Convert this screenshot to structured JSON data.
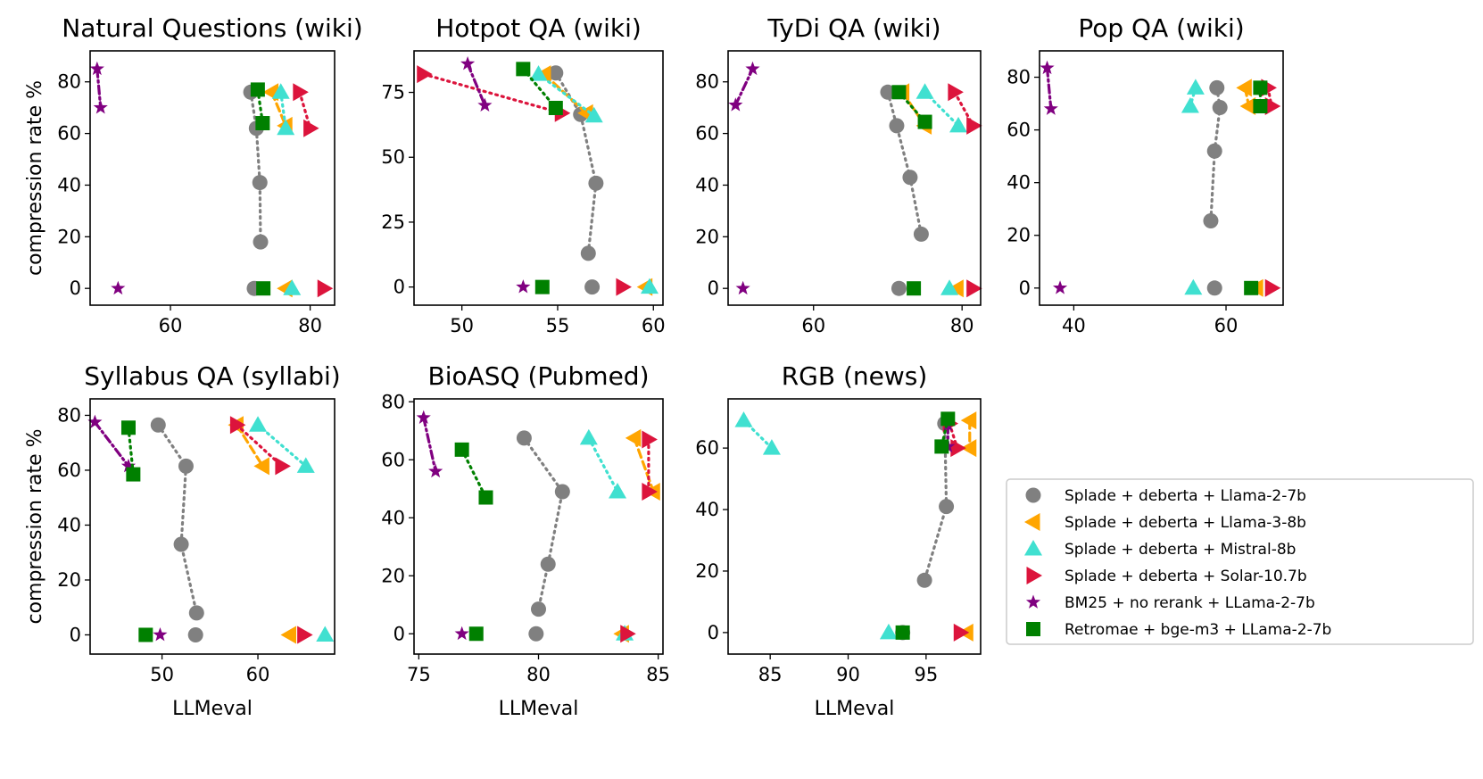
{
  "legend": [
    {
      "label": "Splade + deberta + Llama-2-7b",
      "marker": "circle",
      "color": "#808080",
      "line": "dotted"
    },
    {
      "label": "Splade + deberta + Llama-3-8b",
      "marker": "triangle-left",
      "color": "#FFA500",
      "line": "dashed"
    },
    {
      "label": "Splade + deberta + Mistral-8b",
      "marker": "triangle-up",
      "color": "#40E0D0",
      "line": "dotted"
    },
    {
      "label": "Splade + deberta + Solar-10.7b",
      "marker": "triangle-right",
      "color": "#DC143C",
      "line": "dotted"
    },
    {
      "label": "BM25 + no rerank + LLama-2-7b",
      "marker": "star",
      "color": "#800080",
      "line": "dashdot"
    },
    {
      "label": "Retromae + bge-m3 + LLama-2-7b",
      "marker": "square",
      "color": "#008000",
      "line": "dotted"
    }
  ],
  "chart_data": [
    {
      "type": "scatter",
      "title": "Natural Questions (wiki)",
      "xlabel": "",
      "ylabel": "compression rate %",
      "xlim": [
        48.5,
        83.5
      ],
      "ylim": [
        -6.5,
        92
      ],
      "xticks": [
        60,
        80
      ],
      "yticks": [
        0,
        20,
        40,
        60,
        80
      ],
      "series": [
        {
          "name": "Splade + deberta + Llama-2-7b",
          "points": [
            [
              71.5,
              76
            ],
            [
              72.3,
              62
            ],
            [
              72.8,
              41
            ],
            [
              72.9,
              18
            ]
          ],
          "zero": 72.0
        },
        {
          "name": "Splade + deberta + Llama-3-8b",
          "points": [
            [
              74.5,
              76
            ],
            [
              76.5,
              63
            ]
          ],
          "zero": 76.5
        },
        {
          "name": "Splade + deberta + Mistral-8b",
          "points": [
            [
              75.8,
              76
            ],
            [
              76.5,
              62
            ]
          ],
          "zero": 77.4
        },
        {
          "name": "Splade + deberta + Solar-10.7b",
          "points": [
            [
              78.5,
              76
            ],
            [
              80.0,
              62
            ]
          ],
          "zero": 82.0
        },
        {
          "name": "BM25 + no rerank + LLama-2-7b",
          "points": [
            [
              49.5,
              85
            ],
            [
              50.0,
              70
            ]
          ],
          "zero": 52.5
        },
        {
          "name": "Retromae + bge-m3 + LLama-2-7b",
          "points": [
            [
              72.5,
              77
            ],
            [
              73.2,
              64
            ]
          ],
          "zero": 73.3
        }
      ]
    },
    {
      "type": "scatter",
      "title": "Hotpot QA (wiki)",
      "xlabel": "",
      "ylabel": "",
      "xlim": [
        47.5,
        60.5
      ],
      "ylim": [
        -7,
        91
      ],
      "xticks": [
        50,
        55,
        60
      ],
      "yticks": [
        0,
        25,
        50,
        75
      ],
      "series": [
        {
          "name": "Splade + deberta + Llama-2-7b",
          "points": [
            [
              54.9,
              82.5
            ],
            [
              56.2,
              66.5
            ],
            [
              57.0,
              40
            ],
            [
              56.6,
              13
            ]
          ],
          "zero": 56.8
        },
        {
          "name": "Splade + deberta + Llama-3-8b",
          "points": [
            [
              54.3,
              82
            ],
            [
              56.5,
              67
            ]
          ],
          "zero": 59.6
        },
        {
          "name": "Splade + deberta + Mistral-8b",
          "points": [
            [
              54.0,
              82
            ],
            [
              56.9,
              66
            ]
          ],
          "zero": 59.8
        },
        {
          "name": "Splade + deberta + Solar-10.7b",
          "points": [
            [
              48.0,
              82
            ],
            [
              55.2,
              67
            ]
          ],
          "zero": 58.4
        },
        {
          "name": "BM25 + no rerank + LLama-2-7b",
          "points": [
            [
              50.3,
              86
            ],
            [
              51.2,
              70
            ]
          ],
          "zero": 53.2
        },
        {
          "name": "Retromae + bge-m3 + LLama-2-7b",
          "points": [
            [
              53.2,
              84
            ],
            [
              54.9,
              69
            ]
          ],
          "zero": 54.2
        }
      ]
    },
    {
      "type": "scatter",
      "title": "TyDi QA (wiki)",
      "xlabel": "",
      "ylabel": "",
      "xlim": [
        48.5,
        82.5
      ],
      "ylim": [
        -6.5,
        92
      ],
      "xticks": [
        60,
        80
      ],
      "yticks": [
        0,
        20,
        40,
        60,
        80
      ],
      "series": [
        {
          "name": "Splade + deberta + Llama-2-7b",
          "points": [
            [
              70.0,
              76
            ],
            [
              71.2,
              63
            ],
            [
              73.0,
              43
            ],
            [
              74.5,
              21
            ]
          ],
          "zero": 71.5
        },
        {
          "name": "Splade + deberta + Llama-3-8b",
          "points": [
            [
              72.0,
              76
            ],
            [
              75.0,
              63
            ]
          ],
          "zero": 79.3
        },
        {
          "name": "Splade + deberta + Mistral-8b",
          "points": [
            [
              75.0,
              76
            ],
            [
              79.5,
              63
            ]
          ],
          "zero": 78.3
        },
        {
          "name": "Splade + deberta + Solar-10.7b",
          "points": [
            [
              79.0,
              76
            ],
            [
              81.5,
              63
            ]
          ],
          "zero": 81.5
        },
        {
          "name": "BM25 + no rerank + LLama-2-7b",
          "points": [
            [
              49.5,
              71
            ],
            [
              51.8,
              85
            ]
          ],
          "zero": 50.5
        },
        {
          "name": "Retromae + bge-m3 + LLama-2-7b",
          "points": [
            [
              71.5,
              76
            ],
            [
              75.0,
              64.5
            ]
          ],
          "zero": 73.5
        }
      ]
    },
    {
      "type": "scatter",
      "title": "Pop QA (wiki)",
      "xlabel": "",
      "ylabel": "",
      "xlim": [
        35.5,
        67.5
      ],
      "ylim": [
        -6.5,
        90
      ],
      "xticks": [
        40,
        60
      ],
      "yticks": [
        0,
        20,
        40,
        60,
        80
      ],
      "series": [
        {
          "name": "Splade + deberta + Llama-2-7b",
          "points": [
            [
              58.8,
              76
            ],
            [
              59.2,
              68.5
            ],
            [
              58.5,
              52
            ],
            [
              58.0,
              25.5
            ]
          ],
          "zero": 58.5
        },
        {
          "name": "Splade + deberta + Llama-3-8b",
          "points": [
            [
              62.5,
              76
            ],
            [
              63.0,
              69
            ]
          ],
          "zero": 64.0
        },
        {
          "name": "Splade + deberta + Mistral-8b",
          "points": [
            [
              56.0,
              76
            ],
            [
              55.3,
              69
            ]
          ],
          "zero": 55.7
        },
        {
          "name": "Splade + deberta + Solar-10.7b",
          "points": [
            [
              65.5,
              76
            ],
            [
              66.0,
              69
            ]
          ],
          "zero": 66.0
        },
        {
          "name": "BM25 + no rerank + LLama-2-7b",
          "points": [
            [
              36.5,
              83.5
            ],
            [
              37.0,
              68
            ]
          ],
          "zero": 38.2
        },
        {
          "name": "Retromae + bge-m3 + LLama-2-7b",
          "points": [
            [
              64.5,
              76
            ],
            [
              64.5,
              69
            ]
          ],
          "zero": 63.3
        }
      ]
    },
    {
      "type": "scatter",
      "title": "Syllabus QA (syllabi)",
      "xlabel": "LLMeval",
      "ylabel": "compression rate %",
      "xlim": [
        42.5,
        68
      ],
      "ylim": [
        -7,
        86
      ],
      "xticks": [
        50,
        60
      ],
      "yticks": [
        0,
        20,
        40,
        60,
        80
      ],
      "series": [
        {
          "name": "Splade + deberta + Llama-2-7b",
          "points": [
            [
              49.6,
              76.5
            ],
            [
              52.5,
              61.5
            ],
            [
              52.0,
              33
            ],
            [
              53.6,
              8
            ]
          ],
          "zero": 53.5
        },
        {
          "name": "Splade + deberta + Llama-3-8b",
          "points": [
            [
              57.8,
              76.5
            ],
            [
              60.5,
              61.5
            ]
          ],
          "zero": 63.3
        },
        {
          "name": "Splade + deberta + Mistral-8b",
          "points": [
            [
              60.0,
              76.5
            ],
            [
              65.0,
              61.5
            ]
          ],
          "zero": 67.0
        },
        {
          "name": "Splade + deberta + Solar-10.7b",
          "points": [
            [
              57.8,
              76.5
            ],
            [
              62.5,
              61.5
            ]
          ],
          "zero": 64.8
        },
        {
          "name": "BM25 + no rerank + LLama-2-7b",
          "points": [
            [
              43.0,
              77.5
            ],
            [
              46.5,
              61.5
            ]
          ],
          "zero": 49.8
        },
        {
          "name": "Retromae + bge-m3 + LLama-2-7b",
          "points": [
            [
              46.5,
              75.5
            ],
            [
              47.0,
              58.5
            ]
          ],
          "zero": 48.3
        }
      ]
    },
    {
      "type": "scatter",
      "title": "BioASQ (Pubmed)",
      "xlabel": "LLMeval",
      "ylabel": "",
      "xlim": [
        74.8,
        85.2
      ],
      "ylim": [
        -7,
        81
      ],
      "xticks": [
        75,
        80,
        85
      ],
      "yticks": [
        0,
        20,
        40,
        60,
        80
      ],
      "series": [
        {
          "name": "Splade + deberta + Llama-2-7b",
          "points": [
            [
              79.4,
              67.5
            ],
            [
              81.0,
              49
            ],
            [
              80.4,
              24
            ],
            [
              80.0,
              8.5
            ]
          ],
          "zero": 79.9
        },
        {
          "name": "Splade + deberta + Llama-3-8b",
          "points": [
            [
              84.0,
              67.5
            ],
            [
              84.8,
              49
            ]
          ],
          "zero": 83.5
        },
        {
          "name": "Splade + deberta + Mistral-8b",
          "points": [
            [
              82.1,
              67.5
            ],
            [
              83.3,
              49
            ]
          ],
          "zero": 83.6
        },
        {
          "name": "Splade + deberta + Solar-10.7b",
          "points": [
            [
              84.6,
              67
            ],
            [
              84.6,
              49
            ]
          ],
          "zero": 83.7
        },
        {
          "name": "BM25 + no rerank + LLama-2-7b",
          "points": [
            [
              75.2,
              74.5
            ],
            [
              75.7,
              56
            ]
          ],
          "zero": 76.8
        },
        {
          "name": "Retromae + bge-m3 + LLama-2-7b",
          "points": [
            [
              76.8,
              63.5
            ],
            [
              77.8,
              47
            ]
          ],
          "zero": 77.4
        }
      ]
    },
    {
      "type": "scatter",
      "title": "RGB (news)",
      "xlabel": "LLMeval",
      "ylabel": "",
      "xlim": [
        82.3,
        98.5
      ],
      "ylim": [
        -7,
        76
      ],
      "xticks": [
        85,
        90,
        95
      ],
      "yticks": [
        0,
        20,
        40,
        60
      ],
      "series": [
        {
          "name": "Splade + deberta + Llama-2-7b",
          "points": [
            [
              96.2,
              68
            ],
            [
              96.3,
              41
            ],
            [
              94.9,
              17
            ]
          ],
          "zero": 93.5
        },
        {
          "name": "Splade + deberta + Llama-3-8b",
          "points": [
            [
              97.8,
              69
            ],
            [
              97.8,
              60
            ]
          ],
          "zero": 97.6
        },
        {
          "name": "Splade + deberta + Mistral-8b",
          "points": [
            [
              83.3,
              69
            ],
            [
              85.1,
              60
            ]
          ],
          "zero": 92.6
        },
        {
          "name": "Splade + deberta + Solar-10.7b",
          "points": [
            [
              96.5,
              68
            ],
            [
              97.0,
              60
            ]
          ],
          "zero": 97.2
        },
        {
          "name": "BM25 + no rerank + LLama-2-7b",
          "points": [
            [
              96.4,
              67.5
            ],
            [
              96.4,
              60.5
            ]
          ],
          "zero": null
        },
        {
          "name": "Retromae + bge-m3 + LLama-2-7b",
          "points": [
            [
              96.4,
              69.5
            ],
            [
              96.0,
              60.5
            ]
          ],
          "zero": 93.5
        }
      ]
    }
  ]
}
